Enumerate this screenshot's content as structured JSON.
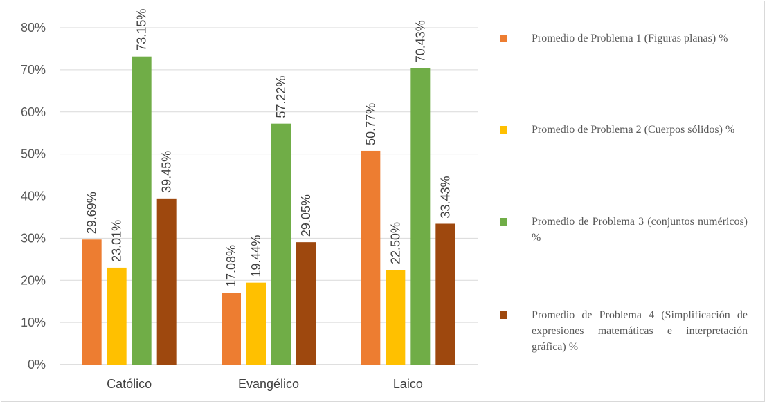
{
  "chart_data": {
    "type": "bar",
    "categories": [
      "Católico",
      "Evangélico",
      "Laico"
    ],
    "series": [
      {
        "name": "Promedio de Problema 1 (Figuras planas) %",
        "values": [
          29.69,
          17.08,
          50.77
        ],
        "labels": [
          "29.69%",
          "17.08%",
          "50.77%"
        ],
        "color": "#ED7D31"
      },
      {
        "name": "Promedio de Problema 2 (Cuerpos sólidos) %",
        "values": [
          23.01,
          19.44,
          22.5
        ],
        "labels": [
          "23.01%",
          "19.44%",
          "22.50%"
        ],
        "color": "#FFC000"
      },
      {
        "name": "Promedio de Problema 3 (conjuntos numéricos) %",
        "values": [
          73.15,
          57.22,
          70.43
        ],
        "labels": [
          "73.15%",
          "57.22%",
          "70.43%"
        ],
        "color": "#70AD47"
      },
      {
        "name": "Promedio de Problema 4 (Simplificación de expresiones matemáticas e interpretación gráfica) %",
        "values": [
          39.45,
          29.05,
          33.43
        ],
        "labels": [
          "39.45%",
          "29.05%",
          "33.43%"
        ],
        "color": "#9E480E"
      }
    ],
    "yticks": [
      0,
      10,
      20,
      30,
      40,
      50,
      60,
      70,
      80
    ],
    "ytick_labels": [
      "0%",
      "10%",
      "20%",
      "30%",
      "40%",
      "50%",
      "60%",
      "70%",
      "80%"
    ],
    "ylim": [
      0,
      80
    ],
    "grid": true,
    "legend_position": "right",
    "title": "",
    "xlabel": "",
    "ylabel": ""
  }
}
